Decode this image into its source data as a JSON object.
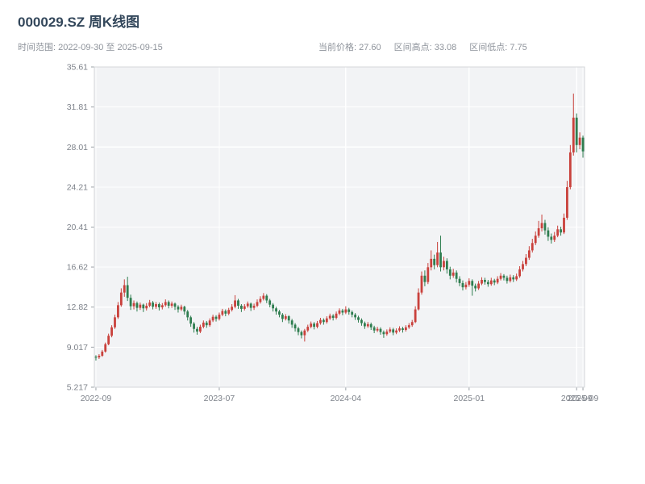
{
  "header": {
    "title": "000029.SZ 周K线图",
    "time_range": "时间范围: 2022-09-30 至 2025-09-15",
    "stats": {
      "current": "当前价格: 27.60",
      "high": "区间高点: 33.08",
      "low": "区间低点: 7.75"
    }
  },
  "chart_data": {
    "type": "candlestick",
    "title": "000029.SZ 周K线图",
    "frequency": "weekly",
    "date_range": [
      "2022-09-30",
      "2025-09-15"
    ],
    "current_price": 27.6,
    "period_high": 33.08,
    "period_low": 7.75,
    "ylim": [
      5.217,
      35.61
    ],
    "y_ticks": [
      {
        "value": 5.217,
        "label": "5.217"
      },
      {
        "value": 9.017,
        "label": "9.017"
      },
      {
        "value": 12.82,
        "label": "12.82"
      },
      {
        "value": 16.62,
        "label": "16.62"
      },
      {
        "value": 20.41,
        "label": "20.41"
      },
      {
        "value": 24.21,
        "label": "24.21"
      },
      {
        "value": 28.01,
        "label": "28.01"
      },
      {
        "value": 31.81,
        "label": "31.81"
      },
      {
        "value": 35.61,
        "label": "35.61"
      }
    ],
    "x_ticks": [
      {
        "index": 0,
        "label": "2022-09"
      },
      {
        "index": 39,
        "label": "2023-07"
      },
      {
        "index": 79,
        "label": "2024-04"
      },
      {
        "index": 118,
        "label": "2025-01"
      },
      {
        "index": 152,
        "label": "2025-09"
      },
      {
        "index": 154,
        "label": "2025-09"
      }
    ],
    "up_color": "#c9413c",
    "down_color": "#2e7d4f",
    "grid_color": "#ffffff",
    "plot_bg_color": "#f2f3f5",
    "ohlc_order": [
      "open",
      "close",
      "low",
      "high"
    ],
    "candles": [
      [
        8.1,
        8.05,
        7.75,
        8.25
      ],
      [
        8.05,
        8.2,
        7.9,
        8.35
      ],
      [
        8.2,
        8.6,
        8.1,
        8.75
      ],
      [
        8.6,
        9.3,
        8.5,
        9.45
      ],
      [
        9.3,
        10.1,
        9.2,
        10.3
      ],
      [
        10.1,
        10.9,
        9.95,
        11.1
      ],
      [
        10.9,
        11.85,
        10.75,
        12.1
      ],
      [
        11.85,
        13.0,
        11.7,
        13.3
      ],
      [
        13.0,
        14.2,
        12.85,
        14.6
      ],
      [
        14.2,
        14.9,
        13.8,
        15.45
      ],
      [
        14.9,
        13.7,
        13.4,
        15.7
      ],
      [
        13.7,
        12.9,
        12.55,
        14.0
      ],
      [
        12.9,
        13.2,
        12.6,
        13.45
      ],
      [
        13.2,
        12.75,
        12.4,
        13.35
      ],
      [
        12.75,
        13.05,
        12.55,
        13.25
      ],
      [
        13.05,
        12.7,
        12.35,
        13.15
      ],
      [
        12.7,
        12.95,
        12.5,
        13.2
      ],
      [
        12.95,
        13.25,
        12.8,
        13.5
      ],
      [
        13.25,
        12.85,
        12.6,
        13.4
      ],
      [
        12.85,
        13.1,
        12.65,
        13.3
      ],
      [
        13.1,
        12.8,
        12.5,
        13.25
      ],
      [
        12.8,
        13.0,
        12.6,
        13.2
      ],
      [
        13.0,
        13.3,
        12.85,
        13.55
      ],
      [
        13.3,
        12.95,
        12.7,
        13.45
      ],
      [
        12.95,
        13.15,
        12.75,
        13.35
      ],
      [
        13.15,
        12.85,
        12.55,
        13.25
      ],
      [
        12.85,
        12.6,
        12.3,
        13.0
      ],
      [
        12.6,
        12.85,
        12.45,
        13.05
      ],
      [
        12.85,
        12.4,
        12.1,
        12.95
      ],
      [
        12.4,
        11.85,
        11.55,
        12.55
      ],
      [
        11.85,
        11.25,
        10.95,
        12.0
      ],
      [
        11.25,
        10.75,
        10.4,
        11.4
      ],
      [
        10.75,
        10.5,
        10.2,
        10.95
      ],
      [
        10.5,
        10.95,
        10.35,
        11.15
      ],
      [
        10.95,
        11.35,
        10.8,
        11.55
      ],
      [
        11.35,
        11.1,
        10.85,
        11.5
      ],
      [
        11.1,
        11.55,
        10.95,
        11.75
      ],
      [
        11.55,
        11.9,
        11.4,
        12.1
      ],
      [
        11.9,
        11.7,
        11.45,
        12.05
      ],
      [
        11.7,
        12.1,
        11.55,
        12.3
      ],
      [
        12.1,
        12.45,
        11.95,
        12.65
      ],
      [
        12.45,
        12.2,
        11.95,
        12.6
      ],
      [
        12.2,
        12.55,
        12.05,
        12.75
      ],
      [
        12.55,
        12.85,
        12.4,
        13.1
      ],
      [
        12.85,
        13.45,
        12.7,
        13.95
      ],
      [
        13.45,
        12.95,
        12.65,
        13.6
      ],
      [
        12.95,
        12.65,
        12.35,
        13.1
      ],
      [
        12.65,
        12.9,
        12.5,
        13.1
      ],
      [
        12.9,
        13.15,
        12.75,
        13.35
      ],
      [
        13.15,
        12.75,
        12.45,
        13.25
      ],
      [
        12.75,
        12.95,
        12.55,
        13.15
      ],
      [
        12.95,
        13.3,
        12.8,
        13.55
      ],
      [
        13.3,
        13.6,
        13.15,
        13.85
      ],
      [
        13.6,
        13.9,
        13.45,
        14.15
      ],
      [
        13.9,
        13.45,
        13.2,
        14.05
      ],
      [
        13.45,
        13.05,
        12.8,
        13.6
      ],
      [
        13.05,
        12.7,
        12.4,
        13.2
      ],
      [
        12.7,
        12.4,
        12.1,
        12.85
      ],
      [
        12.4,
        12.1,
        11.85,
        12.55
      ],
      [
        12.1,
        11.7,
        11.4,
        12.25
      ],
      [
        11.7,
        11.95,
        11.55,
        12.15
      ],
      [
        11.95,
        11.55,
        11.25,
        12.05
      ],
      [
        11.55,
        11.15,
        10.85,
        11.7
      ],
      [
        11.15,
        10.8,
        10.5,
        11.3
      ],
      [
        10.8,
        10.45,
        10.15,
        10.95
      ],
      [
        10.45,
        10.15,
        9.85,
        10.6
      ],
      [
        10.15,
        10.6,
        9.55,
        10.75
      ],
      [
        10.6,
        10.95,
        10.45,
        11.15
      ],
      [
        10.95,
        11.25,
        10.8,
        11.45
      ],
      [
        11.25,
        10.95,
        10.7,
        11.4
      ],
      [
        10.95,
        11.3,
        10.8,
        11.5
      ],
      [
        11.3,
        11.6,
        11.15,
        11.8
      ],
      [
        11.6,
        11.4,
        11.15,
        11.75
      ],
      [
        11.4,
        11.75,
        11.25,
        11.95
      ],
      [
        11.75,
        12.0,
        11.6,
        12.2
      ],
      [
        12.0,
        11.8,
        11.55,
        12.15
      ],
      [
        11.8,
        12.2,
        11.65,
        12.4
      ],
      [
        12.2,
        12.5,
        12.05,
        12.7
      ],
      [
        12.5,
        12.3,
        12.05,
        12.65
      ],
      [
        12.3,
        12.6,
        12.15,
        12.9
      ],
      [
        12.6,
        12.35,
        12.1,
        12.75
      ],
      [
        12.35,
        12.1,
        11.85,
        12.5
      ],
      [
        12.1,
        11.85,
        11.6,
        12.25
      ],
      [
        11.85,
        11.6,
        11.35,
        12.0
      ],
      [
        11.6,
        11.3,
        11.05,
        11.75
      ],
      [
        11.3,
        11.0,
        10.75,
        11.45
      ],
      [
        11.0,
        11.2,
        10.85,
        11.4
      ],
      [
        11.2,
        10.9,
        10.65,
        11.35
      ],
      [
        10.9,
        10.6,
        10.35,
        11.05
      ],
      [
        10.6,
        10.75,
        10.45,
        10.95
      ],
      [
        10.75,
        10.45,
        10.2,
        10.9
      ],
      [
        10.45,
        10.25,
        9.9,
        10.6
      ],
      [
        10.25,
        10.5,
        10.1,
        10.7
      ],
      [
        10.5,
        10.7,
        10.35,
        10.9
      ],
      [
        10.7,
        10.4,
        10.15,
        10.85
      ],
      [
        10.4,
        10.6,
        10.25,
        10.8
      ],
      [
        10.6,
        10.8,
        10.45,
        11.0
      ],
      [
        10.8,
        10.65,
        10.4,
        10.95
      ],
      [
        10.65,
        10.9,
        10.5,
        11.1
      ],
      [
        10.9,
        11.1,
        10.75,
        11.3
      ],
      [
        11.1,
        11.4,
        10.95,
        11.6
      ],
      [
        11.4,
        12.6,
        11.3,
        12.9
      ],
      [
        12.6,
        14.2,
        12.5,
        14.6
      ],
      [
        14.2,
        15.8,
        14.0,
        16.2
      ],
      [
        15.8,
        15.2,
        14.8,
        16.3
      ],
      [
        15.2,
        16.6,
        15.0,
        17.0
      ],
      [
        16.6,
        17.4,
        16.3,
        18.2
      ],
      [
        17.4,
        16.8,
        16.4,
        17.8
      ],
      [
        16.8,
        18.0,
        16.6,
        19.0
      ],
      [
        18.0,
        16.6,
        16.2,
        19.6
      ],
      [
        16.6,
        17.2,
        16.3,
        17.6
      ],
      [
        17.2,
        16.4,
        16.0,
        17.45
      ],
      [
        16.4,
        15.8,
        15.45,
        16.65
      ],
      [
        15.8,
        16.1,
        15.6,
        16.45
      ],
      [
        16.1,
        15.5,
        15.15,
        16.3
      ],
      [
        15.5,
        15.1,
        14.8,
        15.75
      ],
      [
        15.1,
        14.7,
        14.4,
        15.35
      ],
      [
        14.7,
        14.95,
        14.5,
        15.2
      ],
      [
        14.95,
        15.3,
        14.75,
        15.55
      ],
      [
        15.3,
        14.85,
        13.9,
        15.45
      ],
      [
        14.85,
        14.6,
        14.3,
        15.05
      ],
      [
        14.6,
        15.05,
        14.45,
        15.3
      ],
      [
        15.05,
        15.4,
        14.9,
        15.65
      ],
      [
        15.4,
        15.2,
        14.95,
        15.6
      ],
      [
        15.2,
        15.0,
        14.75,
        15.4
      ],
      [
        15.0,
        15.35,
        14.85,
        15.6
      ],
      [
        15.35,
        15.15,
        14.9,
        15.5
      ],
      [
        15.15,
        15.5,
        15.0,
        15.75
      ],
      [
        15.5,
        15.8,
        15.35,
        16.05
      ],
      [
        15.8,
        15.6,
        15.35,
        15.95
      ],
      [
        15.6,
        15.3,
        15.05,
        15.8
      ],
      [
        15.3,
        15.65,
        15.15,
        15.9
      ],
      [
        15.65,
        15.45,
        15.2,
        15.85
      ],
      [
        15.45,
        15.75,
        15.3,
        16.0
      ],
      [
        15.75,
        16.4,
        15.6,
        16.7
      ],
      [
        16.4,
        16.9,
        16.2,
        17.2
      ],
      [
        16.9,
        17.5,
        16.7,
        17.85
      ],
      [
        17.5,
        18.2,
        17.3,
        18.6
      ],
      [
        18.2,
        18.9,
        18.0,
        19.3
      ],
      [
        18.9,
        19.6,
        18.7,
        20.0
      ],
      [
        19.6,
        20.3,
        19.4,
        21.0
      ],
      [
        20.3,
        20.8,
        20.0,
        21.6
      ],
      [
        20.8,
        20.1,
        19.7,
        21.1
      ],
      [
        20.1,
        19.5,
        19.1,
        20.4
      ],
      [
        19.5,
        19.2,
        18.85,
        19.8
      ],
      [
        19.2,
        19.6,
        19.0,
        19.95
      ],
      [
        19.6,
        20.2,
        19.45,
        20.55
      ],
      [
        20.2,
        19.9,
        19.6,
        20.45
      ],
      [
        19.9,
        21.3,
        19.75,
        21.7
      ],
      [
        21.3,
        24.2,
        21.1,
        24.8
      ],
      [
        24.2,
        27.5,
        24.0,
        28.2
      ],
      [
        27.5,
        30.8,
        27.2,
        33.08
      ],
      [
        30.8,
        28.2,
        27.5,
        31.2
      ],
      [
        28.2,
        28.9,
        27.8,
        29.4
      ],
      [
        28.9,
        27.6,
        27.0,
        29.1
      ]
    ]
  }
}
